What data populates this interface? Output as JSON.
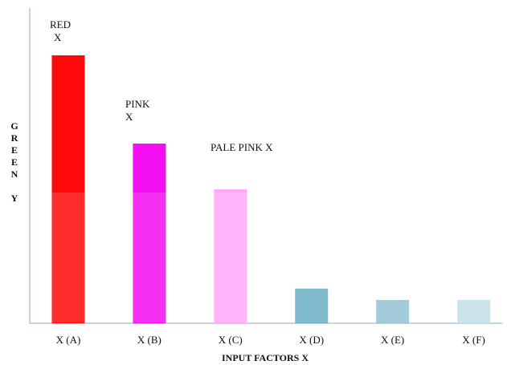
{
  "chart_data": {
    "type": "bar",
    "categories": [
      "X (A)",
      "X (B)",
      "X (C)",
      "X (D)",
      "X (E)",
      "X (F)"
    ],
    "values": [
      85,
      57,
      42.5,
      11,
      7.4,
      7.4
    ],
    "colors": [
      "#ff0a0a",
      "#f40ff0",
      "#ffa8f8",
      "#6aafc6",
      "#95c3d4",
      "#c3dfe8"
    ],
    "ylim": [
      0,
      100
    ],
    "xlabel": "INPUT FACTORS X",
    "ylabel": "GREEN Y",
    "annotations": [
      [
        "RED",
        "X"
      ],
      [
        "PINK",
        "X"
      ],
      [
        "PALE PINK X"
      ]
    ]
  }
}
